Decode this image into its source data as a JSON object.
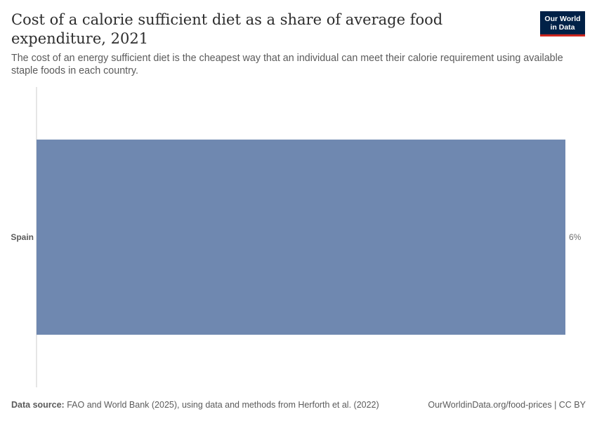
{
  "header": {
    "title": "Cost of a calorie sufficient diet as a share of average food expenditure, 2021",
    "subtitle": "The cost of an energy sufficient diet is the cheapest way that an individual can meet their calorie requirement using available staple foods in each country.",
    "logo_line1": "Our World",
    "logo_line2": "in Data"
  },
  "footer": {
    "source_label": "Data source:",
    "source_text": "FAO and World Bank (2025), using data and methods from Herforth et al. (2022)",
    "url_license": "OurWorldinData.org/food-prices | CC BY"
  },
  "colors": {
    "bar": "#6f88b0",
    "axis": "#cccccc",
    "logo_bg": "#002147",
    "logo_accent": "#ce261e"
  },
  "chart_data": {
    "type": "bar",
    "orientation": "horizontal",
    "categories": [
      "Spain"
    ],
    "values": [
      6
    ],
    "value_labels": [
      "6%"
    ],
    "unit": "%",
    "xlim": [
      0,
      6
    ],
    "grid": false
  }
}
